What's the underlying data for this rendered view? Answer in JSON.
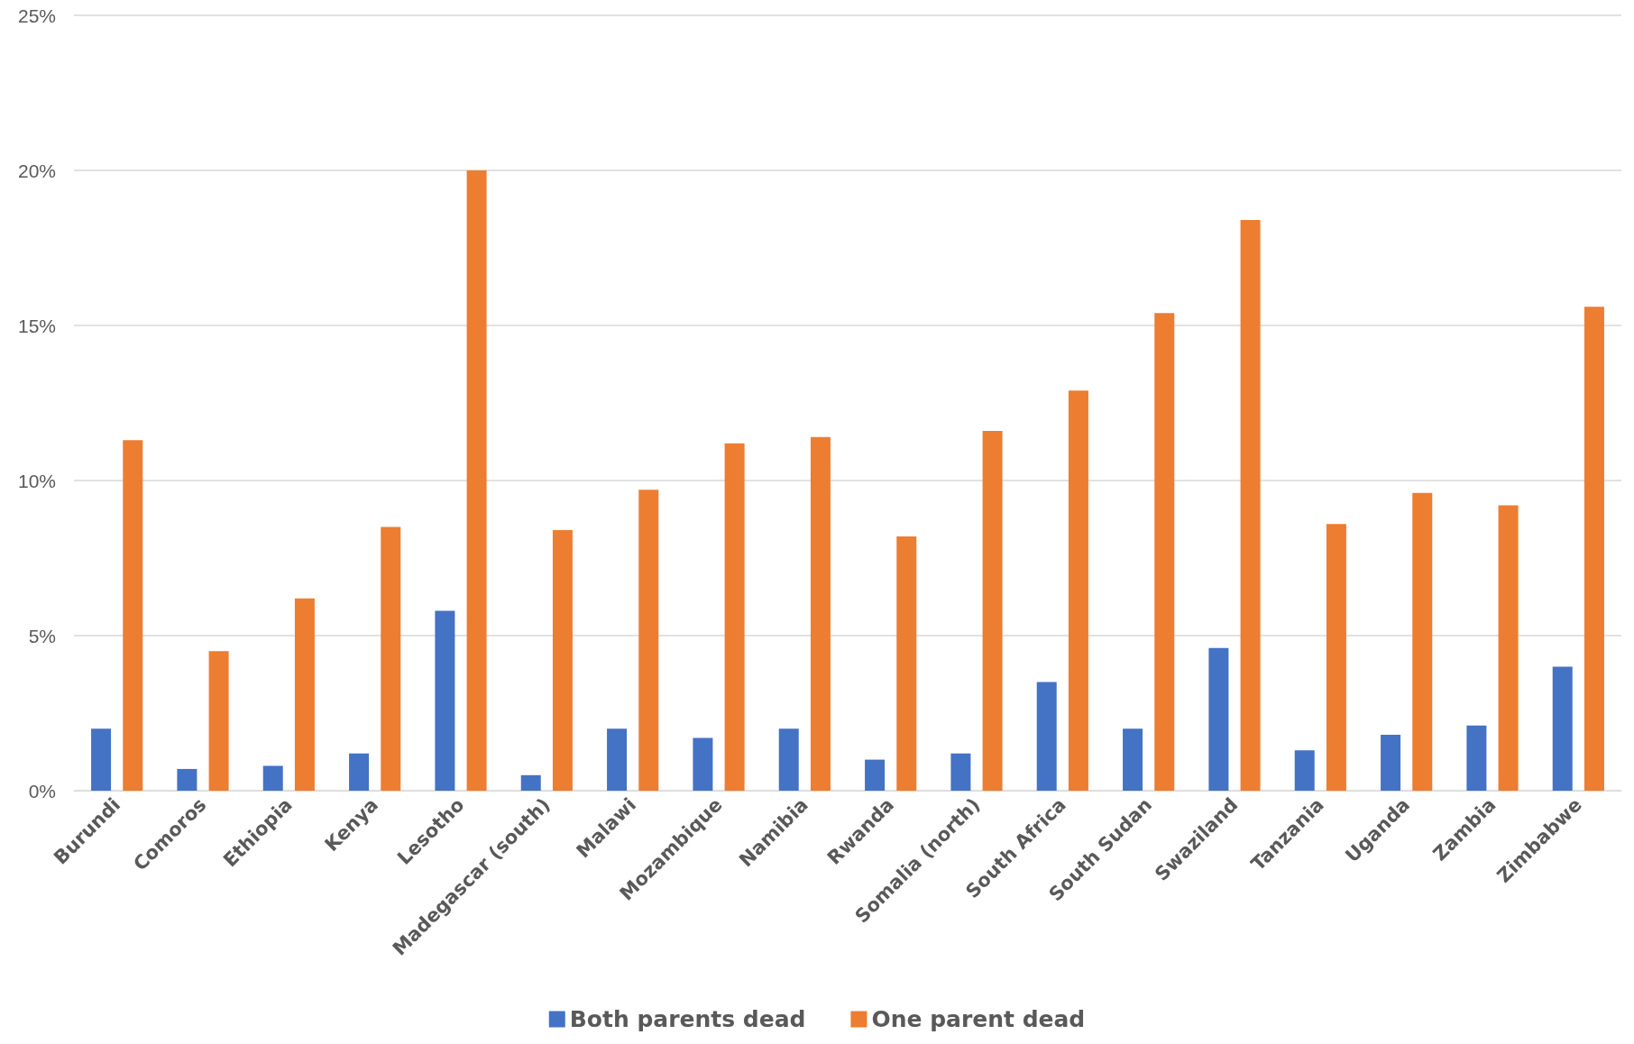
{
  "chart_data": {
    "type": "bar",
    "categories": [
      "Burundi",
      "Comoros",
      "Ethiopia",
      "Kenya",
      "Lesotho",
      "Madegascar (south)",
      "Malawi",
      "Mozambique",
      "Namibia",
      "Rwanda",
      "Somalia (north)",
      "South Africa",
      "South Sudan",
      "Swaziland",
      "Tanzania",
      "Uganda",
      "Zambia",
      "Zimbabwe"
    ],
    "series": [
      {
        "name": "Both parents dead",
        "color": "#4472c4",
        "values": [
          2.0,
          0.7,
          0.8,
          1.2,
          5.8,
          0.5,
          2.0,
          1.7,
          2.0,
          1.0,
          1.2,
          3.5,
          2.0,
          4.6,
          1.3,
          1.8,
          2.1,
          4.0
        ]
      },
      {
        "name": "One parent dead",
        "color": "#ed7d31",
        "values": [
          11.3,
          4.5,
          6.2,
          8.5,
          20.0,
          8.4,
          9.7,
          11.2,
          11.4,
          8.2,
          11.6,
          12.9,
          15.4,
          18.4,
          8.6,
          9.6,
          9.2,
          15.6
        ]
      }
    ],
    "ylim": [
      0,
      25
    ],
    "yticks": [
      {
        "value": 0,
        "label": "0%"
      },
      {
        "value": 5,
        "label": "5%"
      },
      {
        "value": 10,
        "label": "10%"
      },
      {
        "value": 15,
        "label": "15%"
      },
      {
        "value": 20,
        "label": "20%"
      },
      {
        "value": 25,
        "label": "25%"
      }
    ],
    "grid": "y",
    "legend": "bottom"
  }
}
